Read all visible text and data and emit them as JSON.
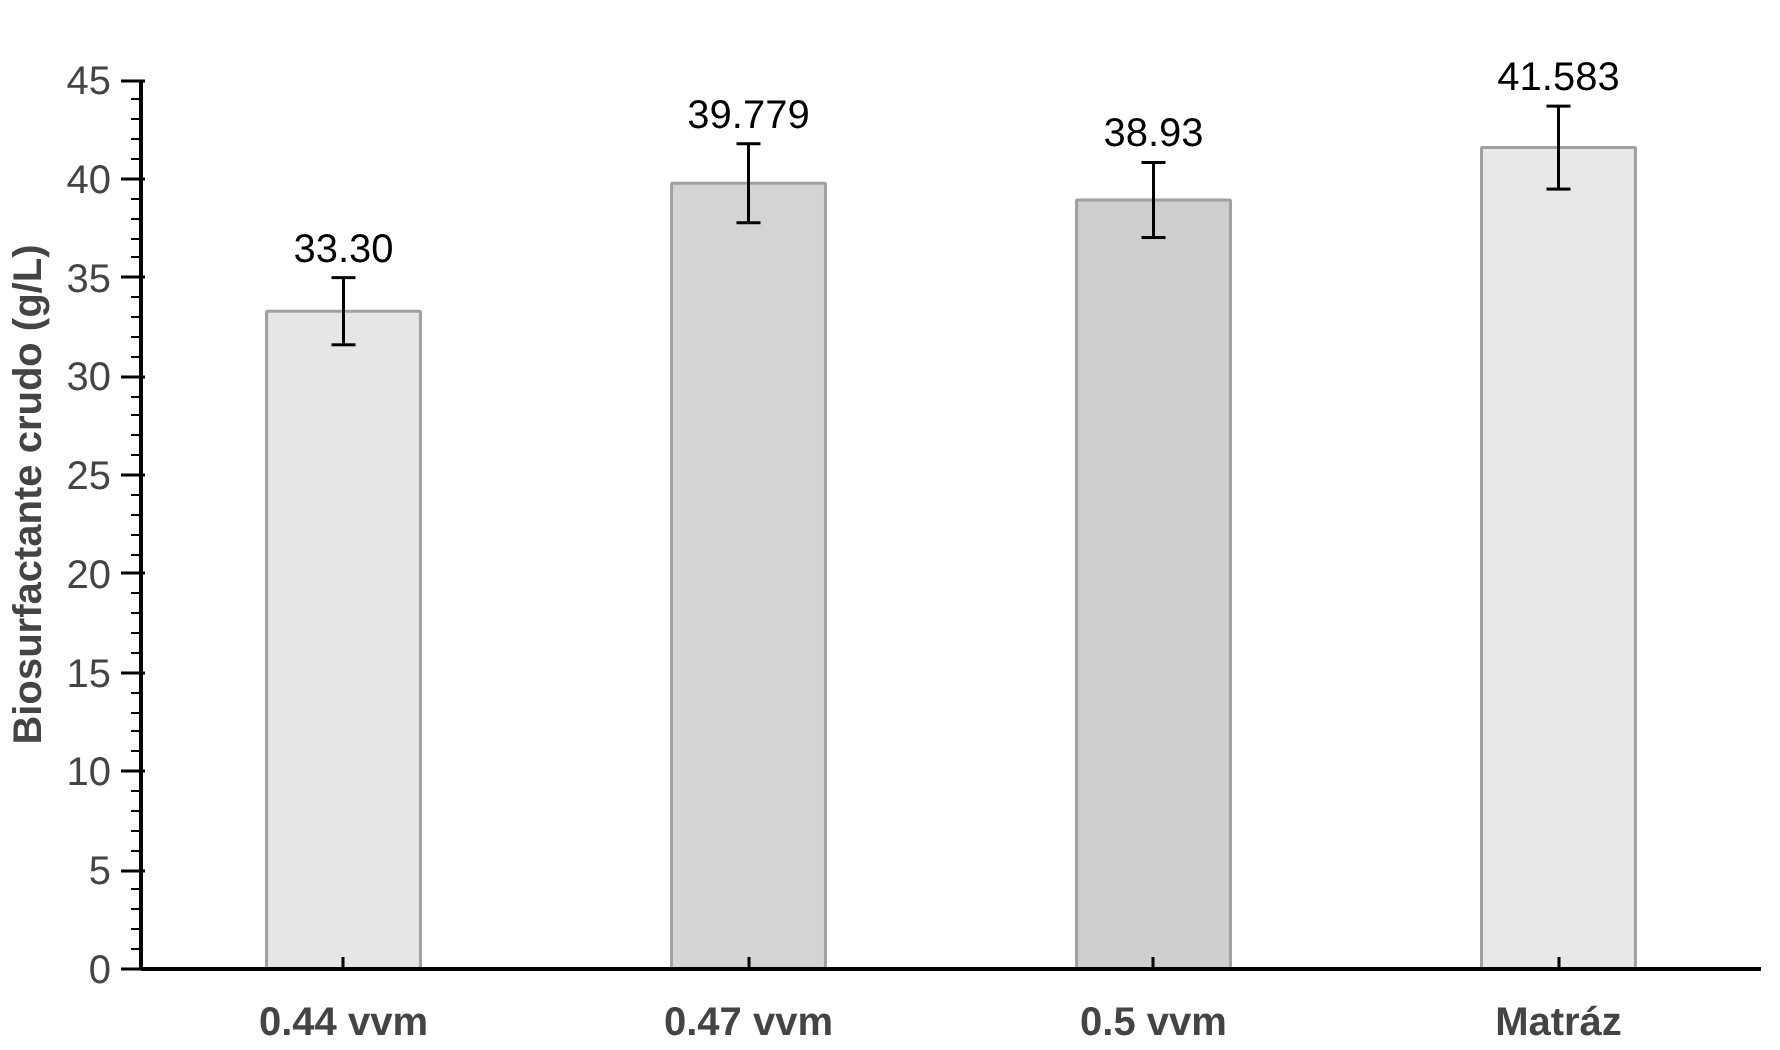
{
  "chart_data": {
    "type": "bar",
    "ylabel": "Biosurfactante crudo  (g/L)",
    "categories": [
      "0.44 vvm",
      "0.47 vvm",
      "0.5 vvm",
      "Matráz"
    ],
    "values": [
      33.3,
      39.779,
      38.93,
      41.583
    ],
    "value_labels": [
      "33.30",
      "39.779",
      "38.93",
      "41.583"
    ],
    "errors": [
      1.7,
      2.0,
      1.9,
      2.1
    ],
    "colors": [
      "#e6e6e6",
      "#d4d4d4",
      "#cfcfcf",
      "#e8e8e8"
    ],
    "ylim": [
      0,
      45
    ],
    "yticks": [
      0,
      5,
      10,
      15,
      20,
      25,
      30,
      35,
      40,
      45
    ],
    "grid": false
  }
}
